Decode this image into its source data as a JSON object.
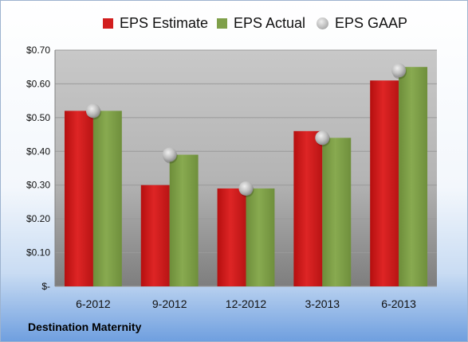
{
  "company_name": "Destination Maternity",
  "chart_data": {
    "type": "bar",
    "categories": [
      "6-2012",
      "9-2012",
      "12-2012",
      "3-2013",
      "6-2013"
    ],
    "series": [
      {
        "name": "EPS Estimate",
        "kind": "bar",
        "color": "#d21e1e",
        "values": [
          0.52,
          0.3,
          0.29,
          0.46,
          0.61
        ]
      },
      {
        "name": "EPS Actual",
        "kind": "bar",
        "color": "#7fa04a",
        "values": [
          0.52,
          0.39,
          0.29,
          0.44,
          0.65
        ]
      },
      {
        "name": "EPS GAAP",
        "kind": "marker",
        "color": "#b0b0b0",
        "values": [
          0.52,
          0.39,
          0.29,
          0.44,
          0.64
        ]
      }
    ],
    "y_tick_labels": [
      "$-",
      "$0.10",
      "$0.20",
      "$0.30",
      "$0.40",
      "$0.50",
      "$0.60",
      "$0.70"
    ],
    "ylim": [
      0,
      0.7
    ],
    "grid": true,
    "legend_position": "top"
  }
}
